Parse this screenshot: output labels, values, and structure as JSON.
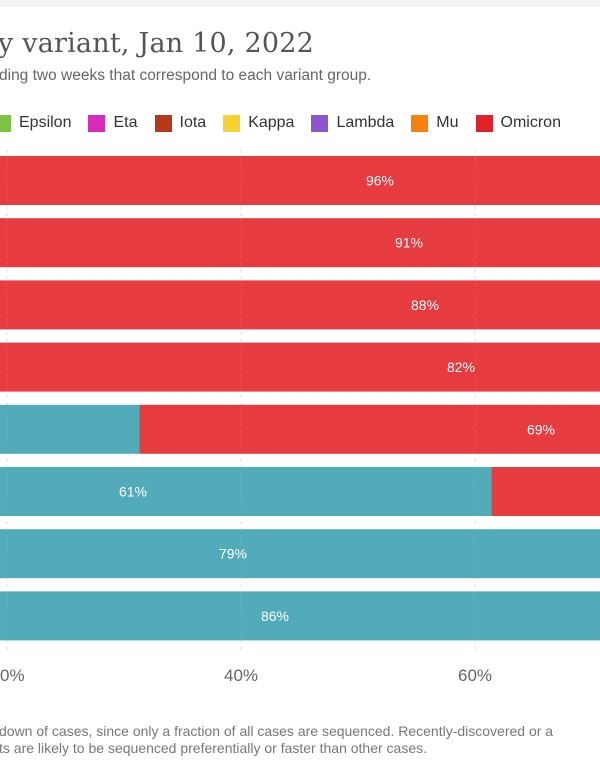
{
  "header": {
    "title": "y variant, Jan 10, 2022",
    "subtitle": "ding two weeks that correspond to each variant group."
  },
  "legend": [
    {
      "label": "Epsilon",
      "color": "#7dc242"
    },
    {
      "label": "Eta",
      "color": "#d62cb9"
    },
    {
      "label": "Iota",
      "color": "#b5381a"
    },
    {
      "label": "Kappa",
      "color": "#f5d22f"
    },
    {
      "label": "Lambda",
      "color": "#8e55d1"
    },
    {
      "label": "Mu",
      "color": "#f5820d"
    },
    {
      "label": "Omicron",
      "color": "#e02127"
    }
  ],
  "footer": {
    "line1": "down of cases, since only a fraction of all cases are sequenced. Recently-discovered or a",
    "line2": "ts are likely to be sequenced preferentially or faster than other cases."
  },
  "chart_data": {
    "type": "bar",
    "orientation": "horizontal",
    "stacked": true,
    "title": "y variant, Jan 10, 2022",
    "xlabel": "",
    "ylabel": "",
    "visible_x_range": [
      19.4,
      70.7
    ],
    "x_ticks": [
      {
        "value": 20,
        "label": "0%"
      },
      {
        "value": 40,
        "label": "40%"
      },
      {
        "value": 60,
        "label": "60%"
      }
    ],
    "grid": "vertical dashed",
    "colors": {
      "teal_group": "#52abb8",
      "omicron": "#e63b3f"
    },
    "rows": [
      {
        "teal_end": 0,
        "label": "96%",
        "label_series": "omicron"
      },
      {
        "teal_end": 0,
        "label": "91%",
        "label_series": "omicron"
      },
      {
        "teal_end": 0,
        "label": "88%",
        "label_series": "omicron"
      },
      {
        "teal_end": 0,
        "label": "82%",
        "label_series": "omicron"
      },
      {
        "teal_end": 31.3,
        "label": "69%",
        "label_series": "omicron"
      },
      {
        "teal_end": 61.4,
        "label": "61%",
        "label_series": "teal_group"
      },
      {
        "teal_end": 100,
        "label": "79%",
        "label_series": "teal_group"
      },
      {
        "teal_end": 100,
        "label": "86%",
        "label_series": "teal_group"
      }
    ]
  }
}
